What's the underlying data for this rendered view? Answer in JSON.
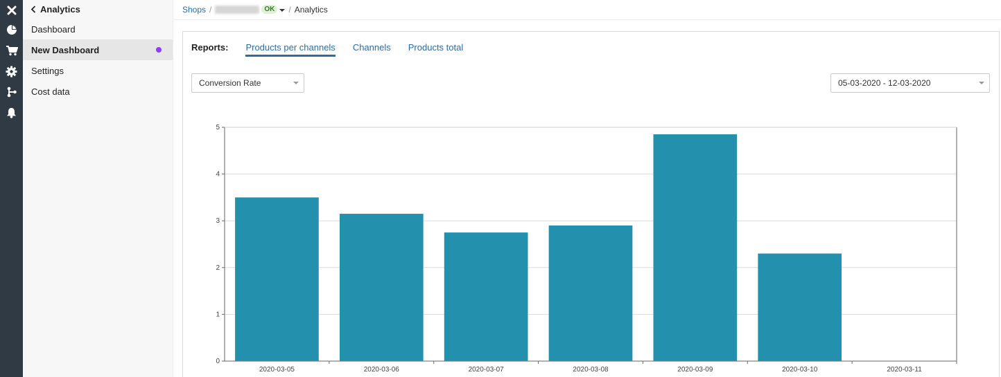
{
  "rail": {
    "icons": [
      "close-icon",
      "pie-chart-icon",
      "cart-icon",
      "gear-icon",
      "branch-icon",
      "bell-icon"
    ]
  },
  "menu": {
    "header": "Analytics",
    "items": [
      {
        "label": "Dashboard",
        "active": false
      },
      {
        "label": "New Dashboard",
        "active": true
      },
      {
        "label": "Settings",
        "active": false
      },
      {
        "label": "Cost data",
        "active": false
      }
    ]
  },
  "breadcrumb": {
    "shops": "Shops",
    "sep": "/",
    "status": "OK",
    "current": "Analytics"
  },
  "reports": {
    "label": "Reports:",
    "tabs": [
      "Products per channels",
      "Channels",
      "Products total"
    ],
    "active_tab": "Products per channels"
  },
  "filters": {
    "metric": "Conversion Rate",
    "date_range": "05-03-2020 - 12-03-2020"
  },
  "colors": {
    "rail_bg": "#2f3a44",
    "bar": "#2390ad",
    "link": "#2b6ca3",
    "dot": "#8a3ffc"
  },
  "chart_data": {
    "type": "bar",
    "categories": [
      "2020-03-05",
      "2020-03-06",
      "2020-03-07",
      "2020-03-08",
      "2020-03-09",
      "2020-03-10",
      "2020-03-11"
    ],
    "values": [
      3.5,
      3.15,
      2.75,
      2.9,
      4.85,
      2.3,
      0
    ],
    "ylim": [
      0,
      5
    ],
    "yticks": [
      "0",
      "1",
      "2",
      "3",
      "4",
      "5"
    ],
    "grid": true,
    "title": "",
    "xlabel": "",
    "ylabel": ""
  }
}
